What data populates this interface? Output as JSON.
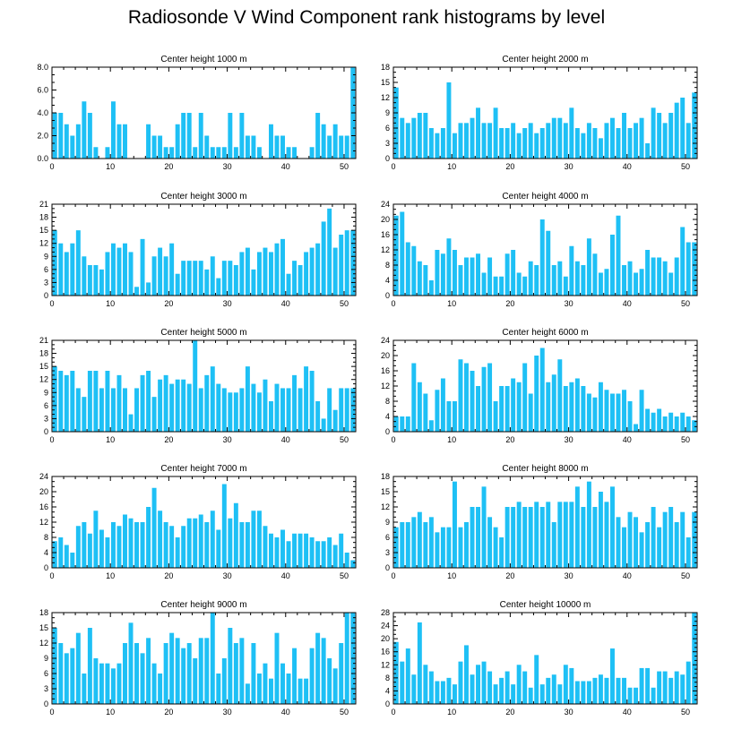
{
  "title": "Radiosonde V Wind Component rank histograms by level",
  "colors": {
    "bar": "#1ec0f5",
    "axis": "#000000",
    "background": "#ffffff"
  },
  "chart_data": [
    {
      "type": "bar",
      "title": "Center height 1000 m",
      "xlim": [
        0,
        52
      ],
      "xticks": [
        0,
        10,
        20,
        30,
        40,
        50
      ],
      "ylim": [
        0,
        8
      ],
      "yticks": [
        0,
        2,
        4,
        6,
        8
      ],
      "ytick_labels": [
        "0.0",
        "2.0",
        "4.0",
        "6.0",
        "8.0"
      ],
      "values": [
        4,
        4,
        3,
        2,
        3,
        5,
        4,
        1,
        0,
        1,
        5,
        3,
        3,
        0,
        0,
        0,
        3,
        2,
        2,
        1,
        1,
        3,
        4,
        4,
        1,
        4,
        2,
        1,
        1,
        1,
        4,
        1,
        4,
        2,
        2,
        1,
        0,
        3,
        2,
        2,
        1,
        1,
        0,
        0,
        1,
        4,
        3,
        2,
        3,
        2,
        2,
        8
      ]
    },
    {
      "type": "bar",
      "title": "Center height 2000 m",
      "xlim": [
        0,
        52
      ],
      "xticks": [
        0,
        10,
        20,
        30,
        40,
        50
      ],
      "ylim": [
        0,
        18
      ],
      "yticks": [
        0,
        3,
        6,
        9,
        12,
        15,
        18
      ],
      "ytick_labels": [
        "0",
        "3",
        "6",
        "9",
        "12",
        "15",
        "18"
      ],
      "values": [
        14,
        8,
        7,
        8,
        9,
        9,
        6,
        5,
        6,
        15,
        5,
        7,
        7,
        8,
        10,
        7,
        7,
        10,
        6,
        6,
        7,
        5,
        6,
        7,
        5,
        6,
        7,
        8,
        8,
        7,
        10,
        6,
        5,
        7,
        6,
        4,
        7,
        8,
        6,
        9,
        6,
        7,
        8,
        3,
        10,
        9,
        7,
        9,
        11,
        12,
        7,
        13
      ]
    },
    {
      "type": "bar",
      "title": "Center height 3000 m",
      "xlim": [
        0,
        52
      ],
      "xticks": [
        0,
        10,
        20,
        30,
        40,
        50
      ],
      "ylim": [
        0,
        21
      ],
      "yticks": [
        0,
        3,
        6,
        9,
        12,
        15,
        18,
        21
      ],
      "ytick_labels": [
        "0",
        "3",
        "6",
        "9",
        "12",
        "15",
        "18",
        "21"
      ],
      "values": [
        15,
        12,
        10,
        12,
        15,
        9,
        7,
        7,
        6,
        10,
        12,
        11,
        12,
        10,
        2,
        13,
        3,
        9,
        11,
        9,
        12,
        5,
        8,
        8,
        8,
        8,
        6,
        9,
        4,
        8,
        8,
        7,
        10,
        11,
        6,
        10,
        11,
        10,
        12,
        13,
        5,
        8,
        7,
        10,
        11,
        12,
        17,
        20,
        11,
        14,
        15,
        15
      ]
    },
    {
      "type": "bar",
      "title": "Center height 4000 m",
      "xlim": [
        0,
        52
      ],
      "xticks": [
        0,
        10,
        20,
        30,
        40,
        50
      ],
      "ylim": [
        0,
        24
      ],
      "yticks": [
        0,
        4,
        8,
        12,
        16,
        20,
        24
      ],
      "ytick_labels": [
        "0",
        "4",
        "8",
        "12",
        "16",
        "20",
        "24"
      ],
      "values": [
        21,
        22,
        14,
        13,
        9,
        8,
        4,
        12,
        11,
        15,
        12,
        8,
        10,
        10,
        11,
        6,
        10,
        5,
        5,
        11,
        12,
        6,
        5,
        9,
        8,
        20,
        17,
        8,
        9,
        5,
        13,
        9,
        8,
        15,
        11,
        6,
        7,
        16,
        21,
        8,
        9,
        6,
        7,
        12,
        10,
        10,
        9,
        6,
        10,
        18,
        14,
        14
      ]
    },
    {
      "type": "bar",
      "title": "Center height 5000 m",
      "xlim": [
        0,
        52
      ],
      "xticks": [
        0,
        10,
        20,
        30,
        40,
        50
      ],
      "ylim": [
        0,
        21
      ],
      "yticks": [
        0,
        3,
        6,
        9,
        12,
        15,
        18,
        21
      ],
      "ytick_labels": [
        "0",
        "3",
        "6",
        "9",
        "12",
        "15",
        "18",
        "21"
      ],
      "values": [
        15,
        14,
        13,
        14,
        10,
        8,
        14,
        14,
        10,
        14,
        10,
        13,
        10,
        4,
        10,
        13,
        14,
        8,
        12,
        13,
        11,
        12,
        12,
        11,
        21,
        10,
        13,
        15,
        11,
        10,
        9,
        9,
        10,
        15,
        11,
        9,
        12,
        7,
        11,
        10,
        10,
        13,
        10,
        15,
        14,
        7,
        3,
        10,
        5,
        10,
        10,
        10
      ]
    },
    {
      "type": "bar",
      "title": "Center height 6000 m",
      "xlim": [
        0,
        52
      ],
      "xticks": [
        0,
        10,
        20,
        30,
        40,
        50
      ],
      "ylim": [
        0,
        24
      ],
      "yticks": [
        0,
        4,
        8,
        12,
        16,
        20,
        24
      ],
      "ytick_labels": [
        "0",
        "4",
        "8",
        "12",
        "16",
        "20",
        "24"
      ],
      "values": [
        4,
        4,
        4,
        18,
        13,
        10,
        3,
        11,
        14,
        8,
        8,
        19,
        18,
        16,
        12,
        17,
        18,
        8,
        12,
        12,
        14,
        13,
        18,
        10,
        20,
        22,
        13,
        15,
        19,
        12,
        13,
        14,
        12,
        10,
        9,
        13,
        11,
        10,
        10,
        11,
        8,
        2,
        11,
        6,
        5,
        6,
        4,
        5,
        4,
        5,
        4,
        3
      ]
    },
    {
      "type": "bar",
      "title": "Center height 7000 m",
      "xlim": [
        0,
        52
      ],
      "xticks": [
        0,
        10,
        20,
        30,
        40,
        50
      ],
      "ylim": [
        0,
        24
      ],
      "yticks": [
        0,
        4,
        8,
        12,
        16,
        20,
        24
      ],
      "ytick_labels": [
        "0",
        "4",
        "8",
        "12",
        "16",
        "20",
        "24"
      ],
      "values": [
        7,
        8,
        6,
        4,
        11,
        12,
        9,
        15,
        10,
        8,
        12,
        11,
        14,
        13,
        12,
        12,
        16,
        21,
        15,
        12,
        11,
        8,
        11,
        13,
        13,
        14,
        12,
        15,
        10,
        22,
        13,
        17,
        12,
        12,
        15,
        15,
        11,
        9,
        8,
        10,
        7,
        9,
        9,
        9,
        8,
        7,
        7,
        8,
        6,
        9,
        4,
        2
      ]
    },
    {
      "type": "bar",
      "title": "Center height 8000 m",
      "xlim": [
        0,
        52
      ],
      "xticks": [
        0,
        10,
        20,
        30,
        40,
        50
      ],
      "ylim": [
        0,
        18
      ],
      "yticks": [
        0,
        3,
        6,
        9,
        12,
        15,
        18
      ],
      "ytick_labels": [
        "0",
        "3",
        "6",
        "9",
        "12",
        "15",
        "18"
      ],
      "values": [
        8,
        9,
        9,
        10,
        11,
        9,
        10,
        7,
        8,
        8,
        17,
        8,
        9,
        12,
        12,
        16,
        10,
        8,
        6,
        12,
        12,
        13,
        12,
        12,
        13,
        12,
        13,
        9,
        13,
        13,
        13,
        16,
        12,
        17,
        12,
        15,
        13,
        16,
        10,
        8,
        11,
        10,
        7,
        9,
        12,
        8,
        11,
        12,
        9,
        11,
        6,
        11
      ]
    },
    {
      "type": "bar",
      "title": "Center height 9000 m",
      "xlim": [
        0,
        52
      ],
      "xticks": [
        0,
        10,
        20,
        30,
        40,
        50
      ],
      "ylim": [
        0,
        18
      ],
      "yticks": [
        0,
        3,
        6,
        9,
        12,
        15,
        18
      ],
      "ytick_labels": [
        "0",
        "3",
        "6",
        "9",
        "12",
        "15",
        "18"
      ],
      "values": [
        15,
        12,
        10,
        11,
        14,
        6,
        15,
        9,
        8,
        8,
        7,
        8,
        12,
        16,
        12,
        10,
        13,
        8,
        6,
        12,
        14,
        13,
        11,
        12,
        9,
        13,
        13,
        18,
        6,
        9,
        15,
        12,
        13,
        4,
        12,
        6,
        8,
        5,
        14,
        8,
        6,
        11,
        5,
        5,
        11,
        14,
        13,
        9,
        7,
        12,
        18,
        18
      ]
    },
    {
      "type": "bar",
      "title": "Center height 10000 m",
      "xlim": [
        0,
        52
      ],
      "xticks": [
        0,
        10,
        20,
        30,
        40,
        50
      ],
      "ylim": [
        0,
        28
      ],
      "yticks": [
        0,
        4,
        8,
        12,
        16,
        20,
        24,
        28
      ],
      "ytick_labels": [
        "0",
        "4",
        "8",
        "12",
        "16",
        "20",
        "24",
        "28"
      ],
      "values": [
        19,
        13,
        17,
        9,
        25,
        12,
        10,
        7,
        7,
        8,
        6,
        13,
        18,
        9,
        12,
        13,
        10,
        6,
        8,
        10,
        6,
        12,
        10,
        5,
        15,
        6,
        8,
        9,
        6,
        12,
        11,
        7,
        7,
        7,
        8,
        9,
        8,
        17,
        8,
        8,
        5,
        5,
        11,
        11,
        5,
        10,
        10,
        8,
        10,
        9,
        13,
        28
      ]
    }
  ]
}
